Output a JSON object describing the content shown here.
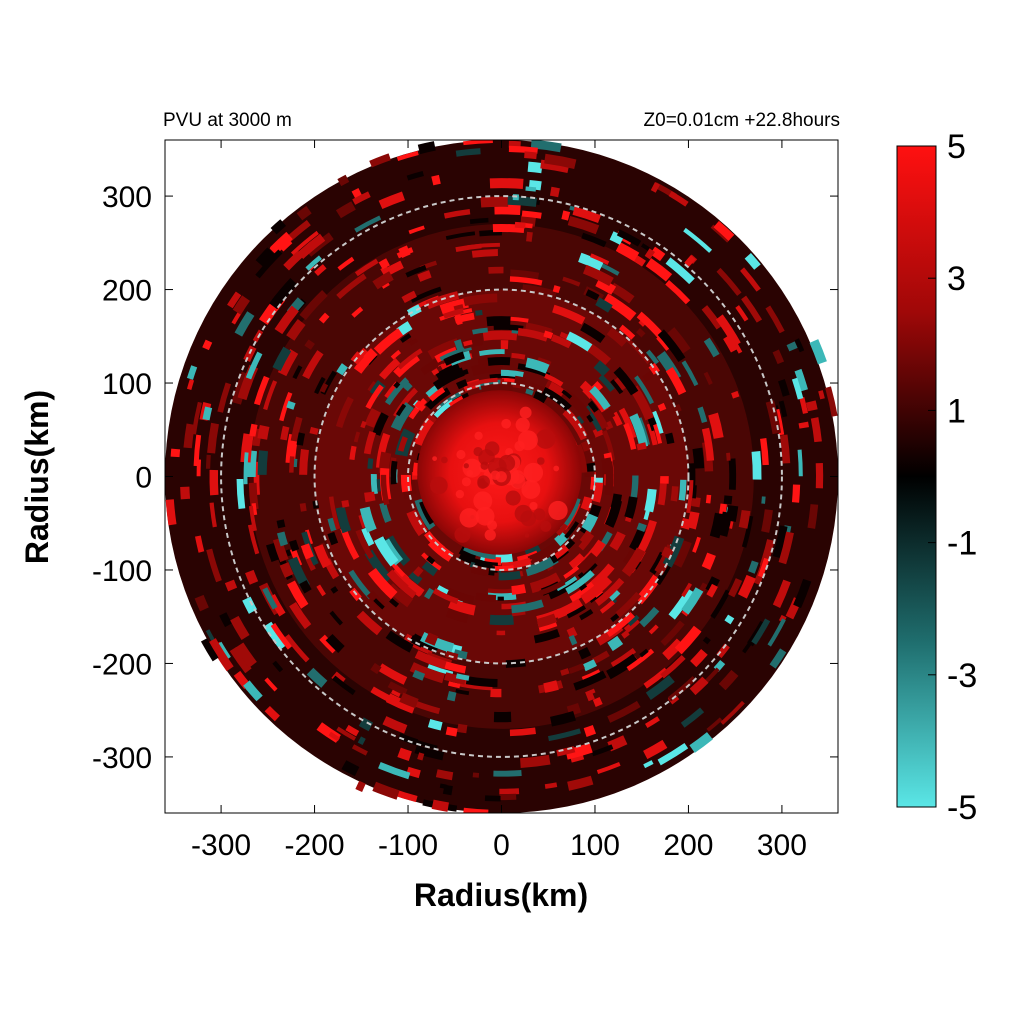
{
  "chart_data": {
    "type": "heatmap",
    "title_left": "PVU at  3000 m",
    "title_right": "Z0=0.01cm  +22.8hours",
    "xlabel": "Radius(km)",
    "ylabel": "Radius(km)",
    "xlim": [
      -360,
      360
    ],
    "ylim": [
      -360,
      360
    ],
    "x_ticks": [
      -300,
      -200,
      -100,
      0,
      100,
      200,
      300
    ],
    "y_ticks": [
      300,
      200,
      100,
      0,
      -100,
      -200,
      -300
    ],
    "x_tick_labels": [
      "-300",
      "-200",
      "-100",
      "0",
      "100",
      "200",
      "300"
    ],
    "y_tick_labels": [
      "300",
      "200",
      "100",
      "0",
      "-100",
      "-200",
      "-300"
    ],
    "domain_radius_km": 360,
    "reference_circles_km": [
      100,
      200,
      300
    ],
    "colorbar": {
      "range": [
        -5,
        5
      ],
      "tick_labels": [
        "5",
        "3",
        "1",
        "-1",
        "-3",
        "-5"
      ],
      "tick_values": [
        5,
        3,
        1,
        -1,
        -3,
        -5
      ],
      "colors": {
        "max": "#ff1010",
        "mid": "#000000",
        "min": "#5ae6e6"
      }
    },
    "field_description_values": {
      "core_value": 4.8,
      "ring_value": 3.5,
      "background_value": 0.6,
      "negative_band_value": -3.5
    },
    "grid": false
  }
}
